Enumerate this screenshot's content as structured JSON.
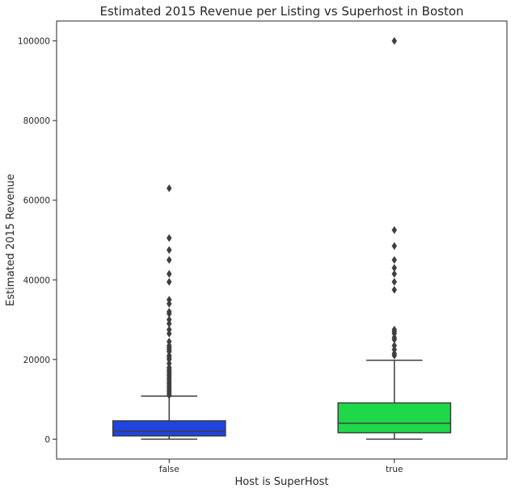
{
  "chart_data": {
    "type": "box",
    "title": "Estimated 2015 Revenue per Listing vs Superhost in Boston",
    "xlabel": "Host is SuperHost",
    "ylabel": "Estimated 2015 Revenue",
    "categories": [
      "false",
      "true"
    ],
    "ylim": [
      -5000,
      105000
    ],
    "yticks": [
      0,
      20000,
      40000,
      60000,
      80000,
      100000
    ],
    "ytick_labels": [
      "0",
      "20000",
      "40000",
      "60000",
      "80000",
      "100000"
    ],
    "grid": false,
    "boxes": [
      {
        "category": "false",
        "color": "#1f44e0",
        "min": 0,
        "q1": 800,
        "median": 2000,
        "q3": 4600,
        "whisker_high": 10800,
        "outliers": [
          11000,
          11500,
          12000,
          12500,
          13000,
          13500,
          14000,
          14500,
          15000,
          15500,
          16000,
          16500,
          17000,
          17500,
          18000,
          19000,
          20000,
          20500,
          21000,
          22000,
          22500,
          23000,
          23500,
          24500,
          26500,
          27500,
          29000,
          30000,
          31500,
          32000,
          34000,
          35000,
          39500,
          41500,
          45000,
          47500,
          50500,
          63000
        ]
      },
      {
        "category": "true",
        "color": "#1ed84a",
        "min": 0,
        "q1": 1600,
        "median": 4000,
        "q3": 9100,
        "whisker_high": 19800,
        "outliers": [
          21000,
          21500,
          22500,
          23500,
          25000,
          25500,
          26500,
          27000,
          27500,
          37500,
          39500,
          41500,
          43000,
          45000,
          48500,
          52500,
          100000
        ]
      }
    ]
  },
  "colors": {
    "axis": "#262626",
    "box_edge": "#3f3f3f"
  }
}
